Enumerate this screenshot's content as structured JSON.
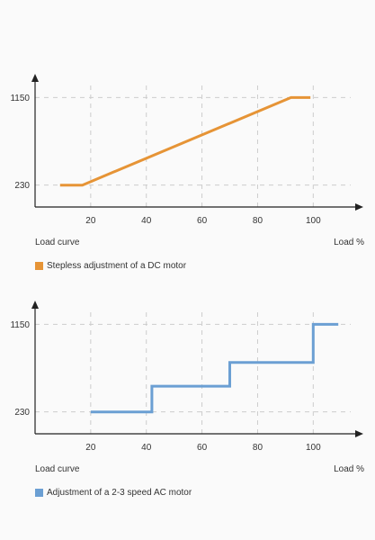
{
  "chart_data": [
    {
      "type": "line",
      "step": false,
      "x": [
        9,
        17,
        92,
        99
      ],
      "series": [
        {
          "name": "Stepless adjustment of a DC motor",
          "values": [
            230,
            230,
            1150,
            1150
          ],
          "color": "#e69436"
        }
      ],
      "xticks": [
        20,
        40,
        60,
        80,
        100
      ],
      "yticks": [
        230,
        1150
      ],
      "xlim": [
        0,
        118
      ],
      "ylim": [
        0,
        1400
      ],
      "xlabel": "Load %",
      "ylabel_caption": "Load curve",
      "legend_label": "Stepless adjustment of a DC motor",
      "grid": true
    },
    {
      "type": "line",
      "step": true,
      "x": [
        20,
        42,
        42,
        70,
        70,
        100,
        100,
        109
      ],
      "series": [
        {
          "name": "Adjustment of a 2-3 speed AC motor",
          "values": [
            230,
            230,
            500,
            500,
            750,
            750,
            1150,
            1150
          ],
          "color": "#6b9fd3"
        }
      ],
      "xticks": [
        20,
        40,
        60,
        80,
        100
      ],
      "yticks": [
        230,
        1150
      ],
      "xlim": [
        0,
        118
      ],
      "ylim": [
        0,
        1400
      ],
      "xlabel": "Load %",
      "ylabel_caption": "Load curve",
      "legend_label": "Adjustment of a 2-3 speed AC motor",
      "grid": true
    }
  ]
}
